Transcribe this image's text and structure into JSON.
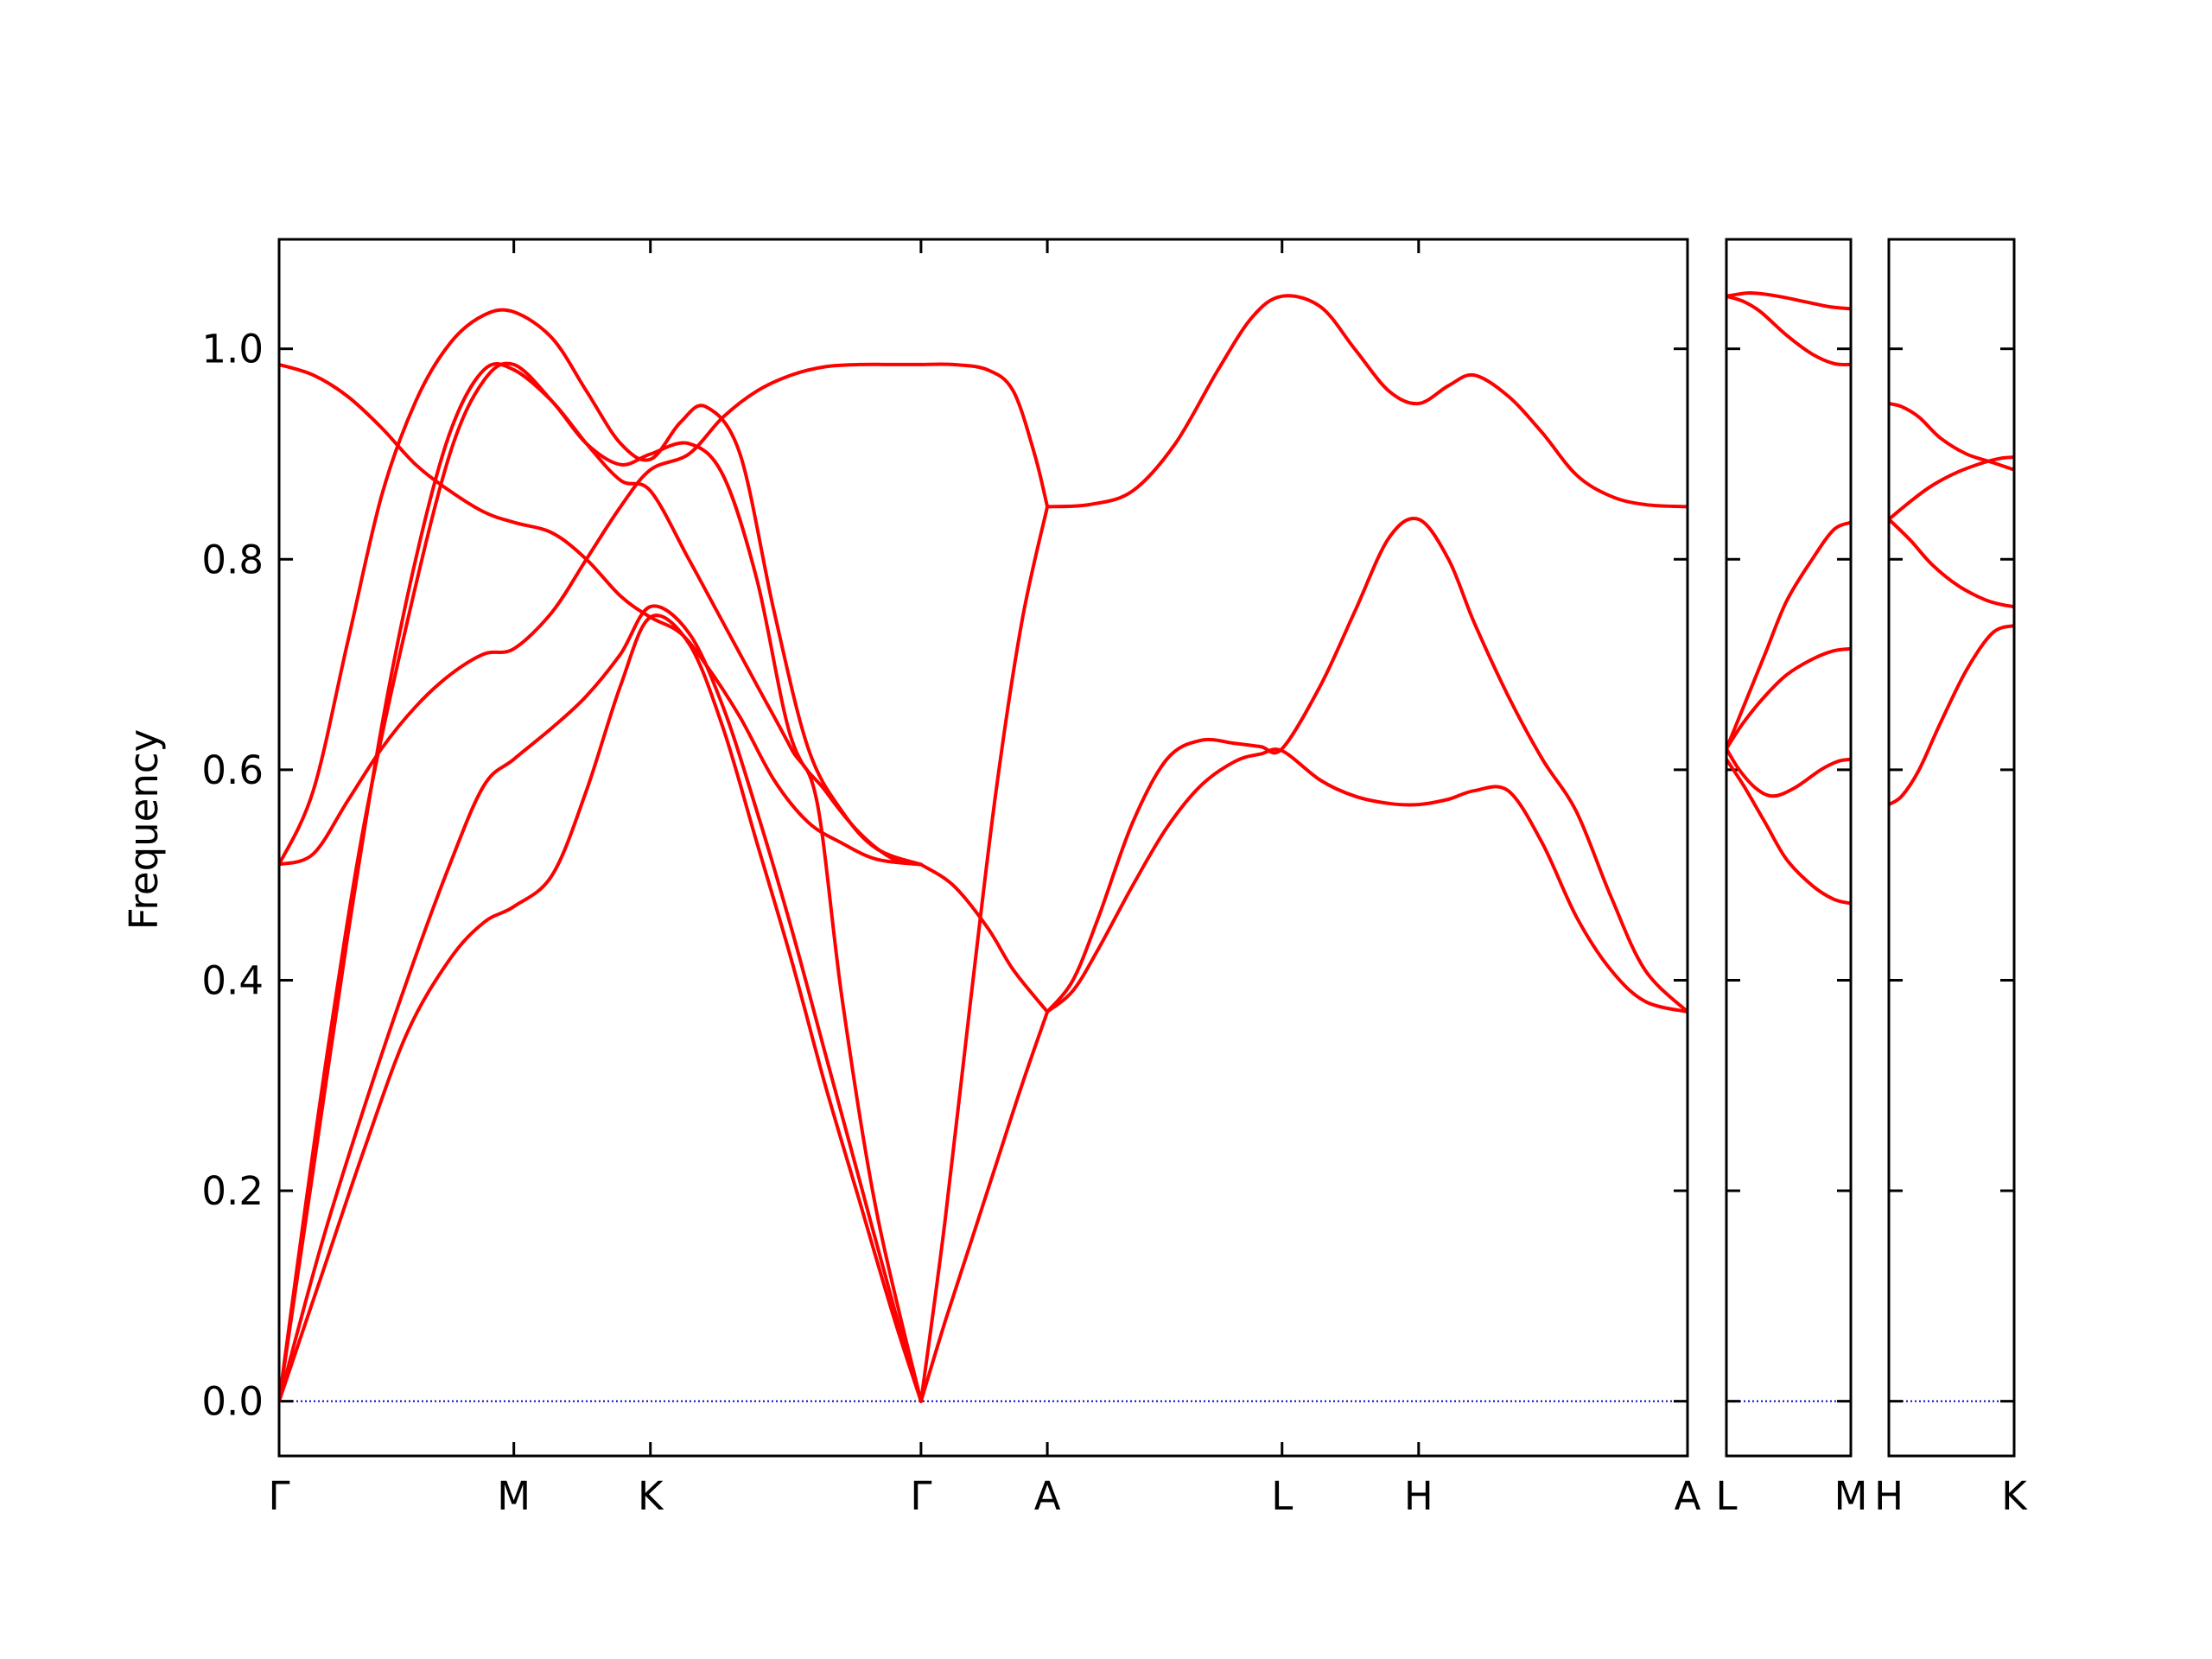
{
  "chart_data": {
    "type": "line",
    "ylabel": "Frequency",
    "xlabel": "",
    "title": "",
    "ylim": [
      -0.052,
      1.104
    ],
    "yticks": [
      0.0,
      0.2,
      0.4,
      0.6,
      0.8,
      1.0
    ],
    "ytick_labels": [
      "0.0",
      "0.2",
      "0.4",
      "0.6",
      "0.8",
      "1.0"
    ],
    "grid": false,
    "line_color": "#ff0000",
    "zero_line_color": "#0000cc",
    "x_unit": "path length (arbitrary, tick positions)",
    "panels": [
      {
        "name": "panel-main",
        "xlim": [
          0.0,
          16.5
        ],
        "ticks": [
          {
            "x": 0.0,
            "label": "Γ"
          },
          {
            "x": 2.75,
            "label": "M"
          },
          {
            "x": 4.35,
            "label": "K"
          },
          {
            "x": 7.52,
            "label": "Γ"
          },
          {
            "x": 9.0,
            "label": "A"
          },
          {
            "x": 11.75,
            "label": "L"
          },
          {
            "x": 13.35,
            "label": "H"
          },
          {
            "x": 16.5,
            "label": "A"
          }
        ],
        "series": [
          {
            "x": [
              0.0,
              0.5,
              1.0,
              1.5,
              2.0,
              2.4,
              2.75,
              3.2,
              3.6,
              4.0,
              4.35,
              4.8,
              5.2,
              5.6,
              6.0,
              6.4,
              6.8,
              7.2,
              7.52
            ],
            "y": [
              0.0,
              0.12,
              0.24,
              0.35,
              0.42,
              0.455,
              0.47,
              0.5,
              0.58,
              0.68,
              0.745,
              0.72,
              0.64,
              0.53,
              0.42,
              0.3,
              0.19,
              0.08,
              0.0
            ]
          },
          {
            "x": [
              0.0,
              0.5,
              1.0,
              1.5,
              2.0,
              2.4,
              2.75,
              3.2,
              3.6,
              4.0,
              4.35,
              4.8,
              5.2,
              5.6,
              6.0,
              6.4,
              6.8,
              7.2,
              7.52
            ],
            "y": [
              0.0,
              0.15,
              0.28,
              0.4,
              0.51,
              0.585,
              0.61,
              0.64,
              0.67,
              0.71,
              0.755,
              0.73,
              0.66,
              0.56,
              0.45,
              0.33,
              0.21,
              0.09,
              0.0
            ]
          },
          {
            "x": [
              0.0,
              0.3,
              0.6,
              1.0,
              1.5,
              2.0,
              2.4,
              2.75,
              3.2,
              3.6,
              4.0,
              4.35,
              4.8,
              5.2,
              5.6,
              6.0,
              6.4,
              6.8,
              7.2,
              7.52
            ],
            "y": [
              0.0,
              0.18,
              0.35,
              0.55,
              0.74,
              0.9,
              0.97,
              0.985,
              0.95,
              0.91,
              0.89,
              0.9,
              0.91,
              0.88,
              0.78,
              0.63,
              0.58,
              0.54,
              0.515,
              0.51
            ]
          },
          {
            "x": [
              0.0,
              0.4,
              0.8,
              1.2,
              1.6,
              2.0,
              2.4,
              2.75,
              3.2,
              3.6,
              4.0,
              4.35,
              4.8,
              5.2,
              5.6,
              6.0,
              6.3,
              6.6,
              7.0,
              7.52
            ],
            "y": [
              0.0,
              0.22,
              0.44,
              0.64,
              0.8,
              0.92,
              0.98,
              0.98,
              0.95,
              0.91,
              0.875,
              0.865,
              0.8,
              0.74,
              0.68,
              0.62,
              0.57,
              0.38,
              0.18,
              0.0
            ]
          },
          {
            "x": [
              0.0,
              0.4,
              0.8,
              1.2,
              1.6,
              2.0,
              2.4,
              2.75,
              3.2,
              3.6,
              4.0,
              4.35,
              4.7,
              5.0,
              5.4,
              5.8,
              6.2,
              6.6,
              7.0,
              7.52
            ],
            "y": [
              0.51,
              0.58,
              0.72,
              0.86,
              0.95,
              1.005,
              1.032,
              1.035,
              1.01,
              0.96,
              0.91,
              0.895,
              0.93,
              0.945,
              0.9,
              0.75,
              0.62,
              0.56,
              0.525,
              0.51
            ]
          },
          {
            "x": [
              0.0,
              0.4,
              0.8,
              1.2,
              1.6,
              2.0,
              2.4,
              2.75,
              3.2,
              3.6,
              4.0,
              4.35,
              4.8,
              5.2,
              5.6,
              6.0,
              6.4,
              6.8,
              7.2,
              7.52
            ],
            "y": [
              0.51,
              0.52,
              0.57,
              0.62,
              0.66,
              0.69,
              0.71,
              0.715,
              0.75,
              0.8,
              0.85,
              0.885,
              0.9,
              0.935,
              0.96,
              0.975,
              0.983,
              0.985,
              0.985,
              0.985
            ]
          },
          {
            "x": [
              0.0,
              0.4,
              0.8,
              1.2,
              1.6,
              2.0,
              2.4,
              2.75,
              3.2,
              3.6,
              4.0,
              4.35,
              4.7,
              5.0,
              5.4,
              5.8,
              6.2,
              6.6,
              7.0,
              7.52
            ],
            "y": [
              0.985,
              0.975,
              0.955,
              0.925,
              0.89,
              0.865,
              0.845,
              0.835,
              0.825,
              0.8,
              0.765,
              0.745,
              0.73,
              0.7,
              0.65,
              0.59,
              0.55,
              0.53,
              0.515,
              0.51
            ]
          },
          {
            "x": [
              7.52,
              7.8,
              8.1,
              8.4,
              8.7,
              9.0
            ],
            "y": [
              0.0,
              0.075,
              0.15,
              0.225,
              0.3,
              0.37
            ]
          },
          {
            "x": [
              7.52,
              7.8,
              8.1,
              8.4,
              8.7,
              9.0
            ],
            "y": [
              0.0,
              0.17,
              0.38,
              0.58,
              0.74,
              0.85
            ]
          },
          {
            "x": [
              7.52,
              7.9,
              8.3,
              8.6,
              9.0
            ],
            "y": [
              0.51,
              0.49,
              0.45,
              0.41,
              0.37
            ]
          },
          {
            "x": [
              7.52,
              7.9,
              8.3,
              8.6,
              8.85,
              9.0
            ],
            "y": [
              0.985,
              0.985,
              0.98,
              0.96,
              0.9,
              0.85
            ]
          },
          {
            "x": [
              9.0,
              9.5,
              10.0,
              10.5,
              11.0,
              11.4,
              11.75,
              12.2,
              12.6,
              13.0,
              13.35,
              13.7,
              14.0,
              14.4,
              14.8,
              15.2,
              15.6,
              16.0,
              16.5
            ],
            "y": [
              0.85,
              0.852,
              0.865,
              0.91,
              0.98,
              1.03,
              1.05,
              1.04,
              1.0,
              0.96,
              0.948,
              0.965,
              0.975,
              0.955,
              0.92,
              0.88,
              0.86,
              0.852,
              0.85
            ]
          },
          {
            "x": [
              9.0,
              9.3,
              9.6,
              10.0,
              10.4,
              10.8,
              11.2,
              11.5,
              11.75,
              12.2,
              12.6,
              13.0,
              13.35,
              13.7,
              14.0,
              14.4,
              14.8,
              15.2,
              15.6,
              16.0,
              16.5
            ],
            "y": [
              0.37,
              0.4,
              0.46,
              0.55,
              0.61,
              0.628,
              0.625,
              0.622,
              0.62,
              0.68,
              0.75,
              0.82,
              0.838,
              0.8,
              0.74,
              0.67,
              0.61,
              0.56,
              0.48,
              0.41,
              0.37
            ]
          },
          {
            "x": [
              9.0,
              9.3,
              9.6,
              10.0,
              10.4,
              10.8,
              11.2,
              11.5,
              11.75,
              12.2,
              12.6,
              13.0,
              13.35,
              13.7,
              14.0,
              14.4,
              14.8,
              15.2,
              15.6,
              16.0,
              16.5
            ],
            "y": [
              0.37,
              0.39,
              0.43,
              0.49,
              0.545,
              0.585,
              0.608,
              0.615,
              0.618,
              0.59,
              0.575,
              0.568,
              0.567,
              0.572,
              0.58,
              0.58,
              0.53,
              0.46,
              0.41,
              0.38,
              0.37
            ]
          }
        ]
      },
      {
        "name": "panel-LM",
        "xlim": [
          0.0,
          1.45
        ],
        "ticks": [
          {
            "x": 0.0,
            "label": "L"
          },
          {
            "x": 1.45,
            "label": "M"
          }
        ],
        "series": [
          {
            "x": [
              0.0,
              0.15,
              0.3,
              0.6,
              0.9,
              1.2,
              1.45
            ],
            "y": [
              1.05,
              1.052,
              1.053,
              1.05,
              1.045,
              1.04,
              1.038
            ]
          },
          {
            "x": [
              0.0,
              0.2,
              0.4,
              0.7,
              1.0,
              1.25,
              1.45
            ],
            "y": [
              1.05,
              1.045,
              1.035,
              1.013,
              0.995,
              0.986,
              0.985
            ]
          },
          {
            "x": [
              0.0,
              0.2,
              0.45,
              0.7,
              1.0,
              1.25,
              1.45
            ],
            "y": [
              0.62,
              0.66,
              0.71,
              0.76,
              0.8,
              0.828,
              0.835
            ]
          },
          {
            "x": [
              0.0,
              0.2,
              0.45,
              0.7,
              1.0,
              1.25,
              1.45
            ],
            "y": [
              0.62,
              0.645,
              0.67,
              0.69,
              0.705,
              0.713,
              0.715
            ]
          },
          {
            "x": [
              0.0,
              0.15,
              0.35,
              0.55,
              0.8,
              1.1,
              1.3,
              1.45
            ],
            "y": [
              0.62,
              0.6,
              0.582,
              0.575,
              0.583,
              0.6,
              0.608,
              0.61
            ]
          },
          {
            "x": [
              0.0,
              0.2,
              0.45,
              0.7,
              1.0,
              1.25,
              1.45
            ],
            "y": [
              0.61,
              0.585,
              0.55,
              0.515,
              0.49,
              0.477,
              0.473
            ]
          }
        ]
      },
      {
        "name": "panel-HK",
        "xlim": [
          0.0,
          1.45
        ],
        "ticks": [
          {
            "x": 0.0,
            "label": "H"
          },
          {
            "x": 1.45,
            "label": "K"
          }
        ],
        "series": [
          {
            "x": [
              0.0,
              0.15,
              0.35,
              0.6,
              0.9,
              1.2,
              1.45
            ],
            "y": [
              0.948,
              0.945,
              0.935,
              0.915,
              0.9,
              0.892,
              0.885
            ]
          },
          {
            "x": [
              0.0,
              0.25,
              0.5,
              0.8,
              1.1,
              1.3,
              1.45
            ],
            "y": [
              0.838,
              0.855,
              0.87,
              0.883,
              0.892,
              0.896,
              0.897
            ]
          },
          {
            "x": [
              0.0,
              0.25,
              0.5,
              0.8,
              1.1,
              1.3,
              1.45
            ],
            "y": [
              0.838,
              0.818,
              0.795,
              0.775,
              0.762,
              0.757,
              0.755
            ]
          },
          {
            "x": [
              0.0,
              0.15,
              0.35,
              0.6,
              0.9,
              1.2,
              1.45
            ],
            "y": [
              0.567,
              0.575,
              0.6,
              0.645,
              0.695,
              0.73,
              0.737
            ]
          }
        ]
      }
    ]
  }
}
